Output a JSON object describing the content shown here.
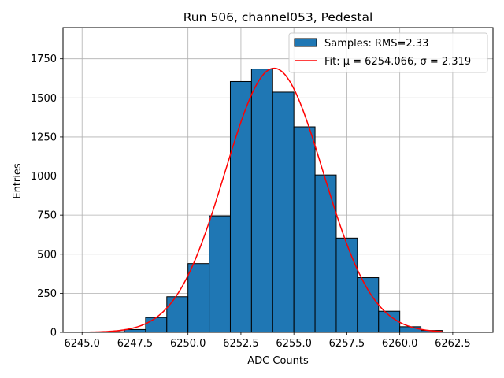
{
  "chart_data": {
    "type": "bar",
    "title": "Run 506, channel053, Pedestal",
    "xlabel": "ADC Counts",
    "ylabel": "Entries",
    "xlim": [
      6244.1,
      6264.4
    ],
    "ylim": [
      0,
      1950
    ],
    "x_ticks": [
      6245.0,
      6247.5,
      6250.0,
      6252.5,
      6255.0,
      6257.5,
      6260.0,
      6262.5
    ],
    "x_tick_labels": [
      "6245.0",
      "6247.5",
      "6250.0",
      "6252.5",
      "6255.0",
      "6257.5",
      "6260.0",
      "6262.5"
    ],
    "y_ticks": [
      0,
      250,
      500,
      750,
      1000,
      1250,
      1500,
      1750
    ],
    "y_tick_labels": [
      "0",
      "250",
      "500",
      "750",
      "1000",
      "1250",
      "1500",
      "1750"
    ],
    "grid": true,
    "legend_position": "top-right",
    "series": [
      {
        "name": "Samples: RMS=2.33",
        "kind": "histogram",
        "color": "#1f77b4",
        "edge_color": "#000000",
        "bin_edges": [
          6245,
          6246,
          6247,
          6248,
          6249,
          6250,
          6251,
          6252,
          6253,
          6254,
          6255,
          6256,
          6257,
          6258,
          6259,
          6260,
          6261,
          6262
        ],
        "values": [
          2,
          4,
          18,
          95,
          228,
          440,
          745,
          1605,
          1685,
          1537,
          1315,
          1007,
          603,
          350,
          135,
          36,
          12
        ]
      },
      {
        "name": "Fit: μ = 6254.066, σ = 2.319",
        "kind": "gaussian-fit",
        "color": "#ff0000",
        "mu": 6254.066,
        "sigma": 2.319,
        "amplitude": 1690,
        "x_range": [
          6245,
          6262
        ]
      }
    ]
  }
}
